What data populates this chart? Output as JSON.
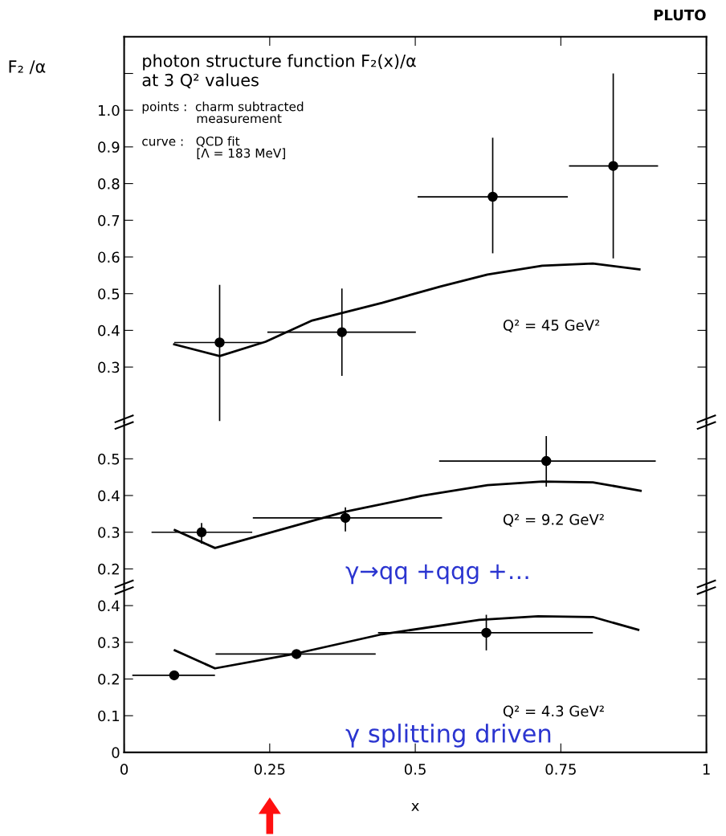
{
  "chart_data": [
    {
      "type": "scatter",
      "title": "photon structure function F₂(x)/α",
      "subtitle": "at 3 Q² values",
      "ylabel": "F₂ /α",
      "annotations": [
        "PLUTO",
        "points :  charm subtracted\n              measurement",
        "curve :   QCD fit\n              [Λ = 183 MeV]",
        "Q² = 45 GeV²"
      ],
      "xlim": [
        0,
        1
      ],
      "ylim": [
        0.15,
        1.2
      ],
      "yticks": [
        0.3,
        0.4,
        0.5,
        0.6,
        0.7,
        0.8,
        0.9,
        {
          "value": 1.0,
          "label": "1.0"
        },
        {
          "value": 1.1,
          "label": null
        }
      ],
      "tick_labels": "y",
      "grid": false,
      "legend": false,
      "series": [
        {
          "marker": "circle",
          "color": "#000000",
          "x": [
            0.164,
            0.374,
            0.633,
            0.84
          ],
          "values": [
            0.367,
            0.395,
            0.764,
            0.848
          ],
          "errors": [
            [
              0.153,
              0.524
            ],
            [
              0.276,
              0.514
            ],
            [
              0.61,
              0.925
            ],
            [
              0.596,
              1.1
            ]
          ],
          "xerrors": [
            [
              0.086,
              0.236
            ],
            [
              0.246,
              0.501
            ],
            [
              0.504,
              0.762
            ],
            [
              0.764,
              0.917
            ]
          ]
        },
        {
          "type": "line",
          "line_style": "solid",
          "color": "#000000",
          "x": [
            0.086,
            0.164,
            0.243,
            0.323,
            0.443,
            0.544,
            0.624,
            0.718,
            0.805,
            0.885
          ],
          "values": [
            0.362,
            0.33,
            0.369,
            0.427,
            0.475,
            0.52,
            0.552,
            0.576,
            0.582,
            0.566
          ]
        }
      ]
    },
    {
      "type": "scatter",
      "annotations": [
        "Q² = 9.2 GeV²",
        "γ→qq +qqg +…"
      ],
      "xlim": [
        0,
        1
      ],
      "ylim": [
        0.15,
        0.6
      ],
      "yticks": [
        0.2,
        0.3,
        0.4,
        0.5
      ],
      "tick_labels": "y",
      "grid": false,
      "legend": false,
      "series": [
        {
          "marker": "circle",
          "color": "#000000",
          "x": [
            0.133,
            0.38,
            0.725
          ],
          "values": [
            0.3,
            0.339,
            0.494
          ],
          "errors": [
            [
              0.269,
              0.325
            ],
            [
              0.302,
              0.368
            ],
            [
              0.424,
              0.562
            ]
          ],
          "xerrors": [
            [
              0.047,
              0.22
            ],
            [
              0.221,
              0.546
            ],
            [
              0.541,
              0.913
            ]
          ]
        },
        {
          "type": "line",
          "line_style": "solid",
          "color": "#000000",
          "x": [
            0.087,
            0.156,
            0.276,
            0.38,
            0.511,
            0.624,
            0.718,
            0.805,
            0.887
          ],
          "values": [
            0.306,
            0.257,
            0.31,
            0.356,
            0.399,
            0.428,
            0.438,
            0.436,
            0.413
          ]
        }
      ]
    },
    {
      "type": "scatter",
      "xlabel": "x",
      "annotations": [
        "Q² = 4.3 GeV²",
        "γ splitting driven"
      ],
      "xlim": [
        0,
        1
      ],
      "xticks": [
        0,
        0.25,
        0.5,
        0.75,
        1
      ],
      "ylim": [
        0,
        0.45
      ],
      "yticks": [
        0,
        0.1,
        0.2,
        0.3,
        0.4
      ],
      "grid": false,
      "legend": false,
      "series": [
        {
          "marker": "circle",
          "color": "#000000",
          "x": [
            0.086,
            0.296,
            0.622
          ],
          "values": [
            0.21,
            0.268,
            0.326
          ],
          "errors": [
            null,
            null,
            [
              0.278,
              0.375
            ]
          ],
          "xerrors": [
            [
              0.014,
              0.156
            ],
            [
              0.157,
              0.432
            ],
            [
              0.436,
              0.805
            ]
          ]
        },
        {
          "type": "line",
          "line_style": "solid",
          "color": "#000000",
          "x": [
            0.087,
            0.156,
            0.297,
            0.443,
            0.61,
            0.711,
            0.805,
            0.883
          ],
          "values": [
            0.278,
            0.229,
            0.27,
            0.322,
            0.361,
            0.371,
            0.369,
            0.334
          ]
        }
      ]
    }
  ]
}
